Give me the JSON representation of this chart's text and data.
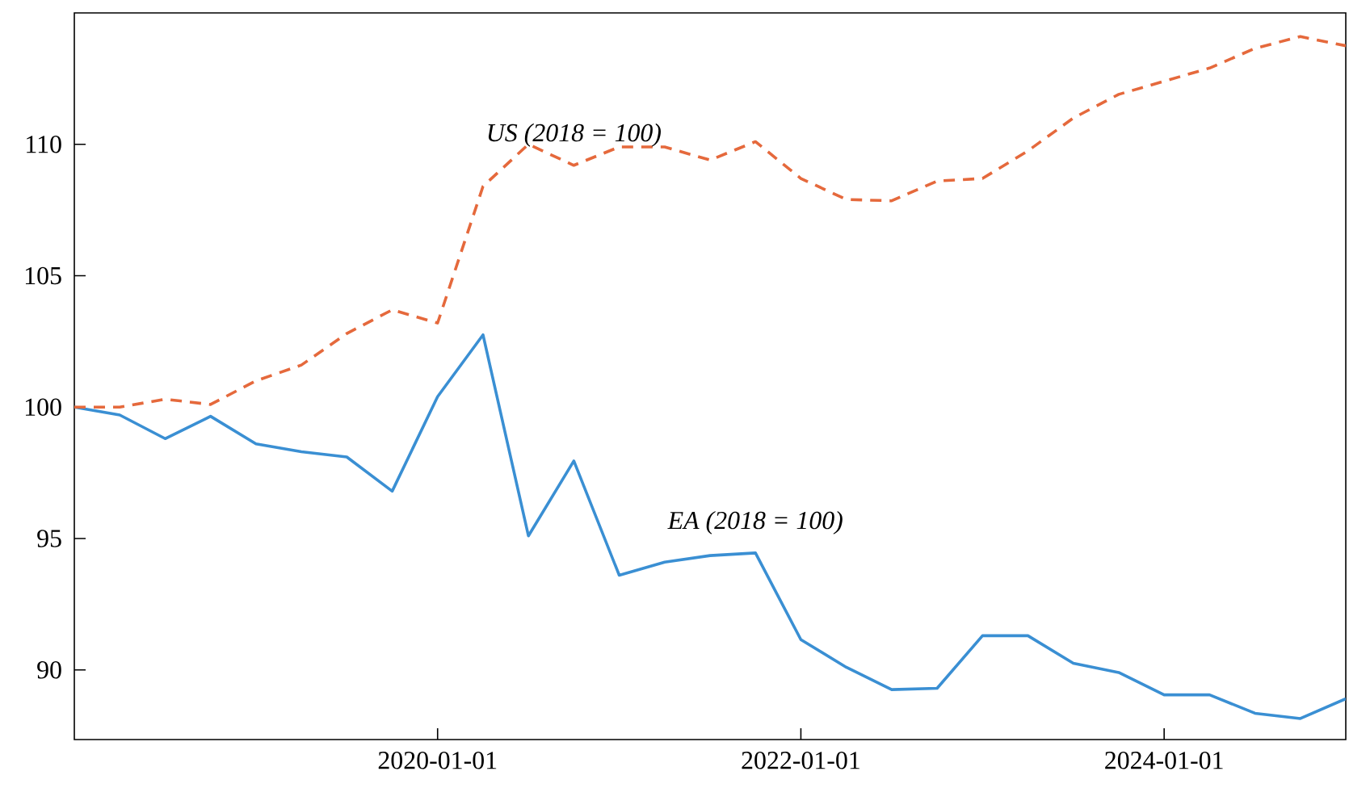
{
  "chart_data": {
    "type": "line",
    "x": [
      "2018-01-01",
      "2018-04-01",
      "2018-07-01",
      "2018-10-01",
      "2019-01-01",
      "2019-04-01",
      "2019-07-01",
      "2019-10-01",
      "2020-01-01",
      "2020-04-01",
      "2020-07-01",
      "2020-10-01",
      "2021-01-01",
      "2021-04-01",
      "2021-07-01",
      "2021-10-01",
      "2022-01-01",
      "2022-04-01",
      "2022-07-01",
      "2022-10-01",
      "2023-01-01",
      "2023-04-01",
      "2023-07-01",
      "2023-10-01",
      "2024-01-01",
      "2024-04-01",
      "2024-07-01",
      "2024-10-01",
      "2025-01-01"
    ],
    "series": [
      {
        "name": "EA (2018 = 100)",
        "color": "#3a8fd3",
        "line_style": "solid",
        "values": [
          100.0,
          99.7,
          98.8,
          99.65,
          98.6,
          98.3,
          98.1,
          96.8,
          100.4,
          102.75,
          95.1,
          97.95,
          93.6,
          94.1,
          94.35,
          94.45,
          91.15,
          90.1,
          89.25,
          89.3,
          91.3,
          91.3,
          90.25,
          89.9,
          89.05,
          89.05,
          88.35,
          88.15,
          88.9
        ]
      },
      {
        "name": "US (2018 = 100)",
        "color": "#e5693c",
        "line_style": "dashed",
        "values": [
          100.0,
          100.0,
          100.3,
          100.1,
          101.0,
          101.6,
          102.8,
          103.7,
          103.2,
          108.4,
          110.0,
          109.2,
          109.9,
          109.9,
          109.4,
          110.1,
          108.7,
          107.9,
          107.85,
          108.6,
          108.7,
          109.75,
          111.0,
          111.9,
          112.4,
          112.9,
          113.65,
          114.1,
          113.75
        ]
      }
    ],
    "xlim": [
      "2018-01-01",
      "2025-01-01"
    ],
    "xticks": [
      "2020-01-01",
      "2022-01-01",
      "2024-01-01"
    ],
    "ylim": [
      87.35,
      115.0
    ],
    "yticks": [
      90,
      95,
      100,
      105,
      110
    ]
  }
}
